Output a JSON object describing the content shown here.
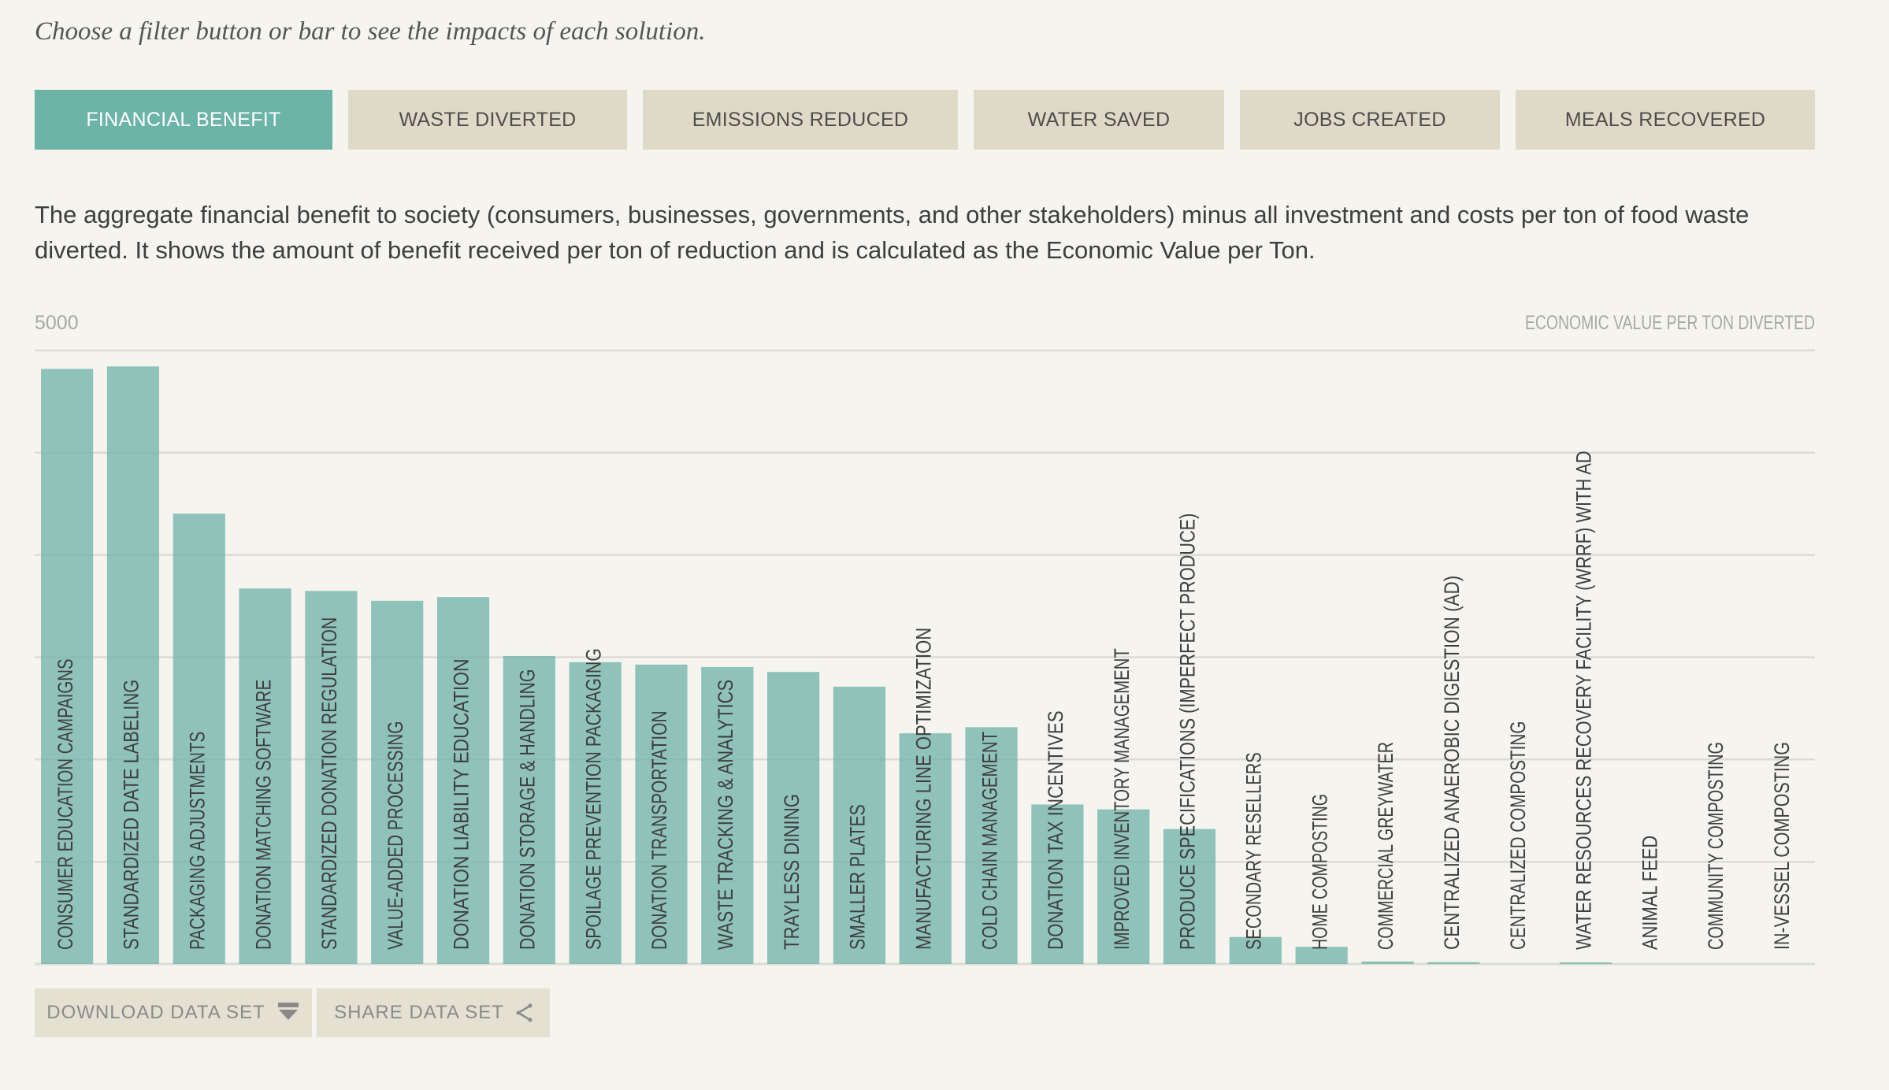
{
  "intro_text": "Choose a filter button or bar to see the impacts of each solution.",
  "filters": [
    {
      "label": "FINANCIAL BENEFIT",
      "active": true
    },
    {
      "label": "WASTE DIVERTED",
      "active": false
    },
    {
      "label": "EMISSIONS REDUCED",
      "active": false
    },
    {
      "label": "WATER SAVED",
      "active": false
    },
    {
      "label": "JOBS CREATED",
      "active": false
    },
    {
      "label": "MEALS RECOVERED",
      "active": false
    }
  ],
  "description": "The aggregate financial benefit to society (consumers, businesses, governments, and other stakeholders) minus all investment and costs per ton of food waste diverted. It shows the amount of benefit received per ton of reduction and is calculated as the Economic Value per Ton.",
  "colors": {
    "bar": "#6cb3a8",
    "active_filter": "#6cb3a8",
    "inactive_filter": "#dfdac7",
    "gridline": "#dcdbd5",
    "background": "#f5f4ef"
  },
  "chart_data": {
    "type": "bar",
    "orientation": "vertical",
    "ymax_label": "5000",
    "ylabel": "ECONOMIC VALUE PER TON DIVERTED",
    "ylim": [
      0,
      5000
    ],
    "grid": true,
    "gridline_values": [
      0,
      833,
      1667,
      2500,
      3333,
      4167,
      5000
    ],
    "categories": [
      "CONSUMER EDUCATION CAMPAIGNS",
      "STANDARDIZED DATE LABELING",
      "PACKAGING ADJUSTMENTS",
      "DONATION MATCHING SOFTWARE",
      "STANDARDIZED DONATION REGULATION",
      "VALUE-ADDED PROCESSING",
      "DONATION LIABILITY EDUCATION",
      "DONATION STORAGE & HANDLING",
      "SPOILAGE PREVENTION PACKAGING",
      "DONATION TRANSPORTATION",
      "WASTE TRACKING & ANALYTICS",
      "TRAYLESS DINING",
      "SMALLER PLATES",
      "MANUFACTURING LINE OPTIMIZATION",
      "COLD CHAIN MANAGEMENT",
      "DONATION TAX INCENTIVES",
      "IMPROVED INVENTORY MANAGEMENT",
      "PRODUCE SPECIFICATIONS (IMPERFECT PRODUCE)",
      "SECONDARY RESELLERS",
      "HOME COMPOSTING",
      "COMMERCIAL GREYWATER",
      "CENTRALIZED ANAEROBIC DIGESTION (AD)",
      "CENTRALIZED COMPOSTING",
      "WATER RESOURCES RECOVERY FACILITY (WRRF) WITH AD",
      "ANIMAL FEED",
      "COMMUNITY COMPOSTING",
      "IN-VESSEL COMPOSTING"
    ],
    "values": [
      4850,
      4870,
      3670,
      3060,
      3040,
      2960,
      2990,
      2510,
      2460,
      2440,
      2420,
      2380,
      2260,
      1880,
      1930,
      1300,
      1260,
      1100,
      220,
      140,
      20,
      15,
      0,
      10,
      0,
      0,
      0
    ]
  },
  "bottom_buttons": {
    "download_label": "DOWNLOAD DATA SET",
    "share_label": "SHARE DATA SET"
  }
}
